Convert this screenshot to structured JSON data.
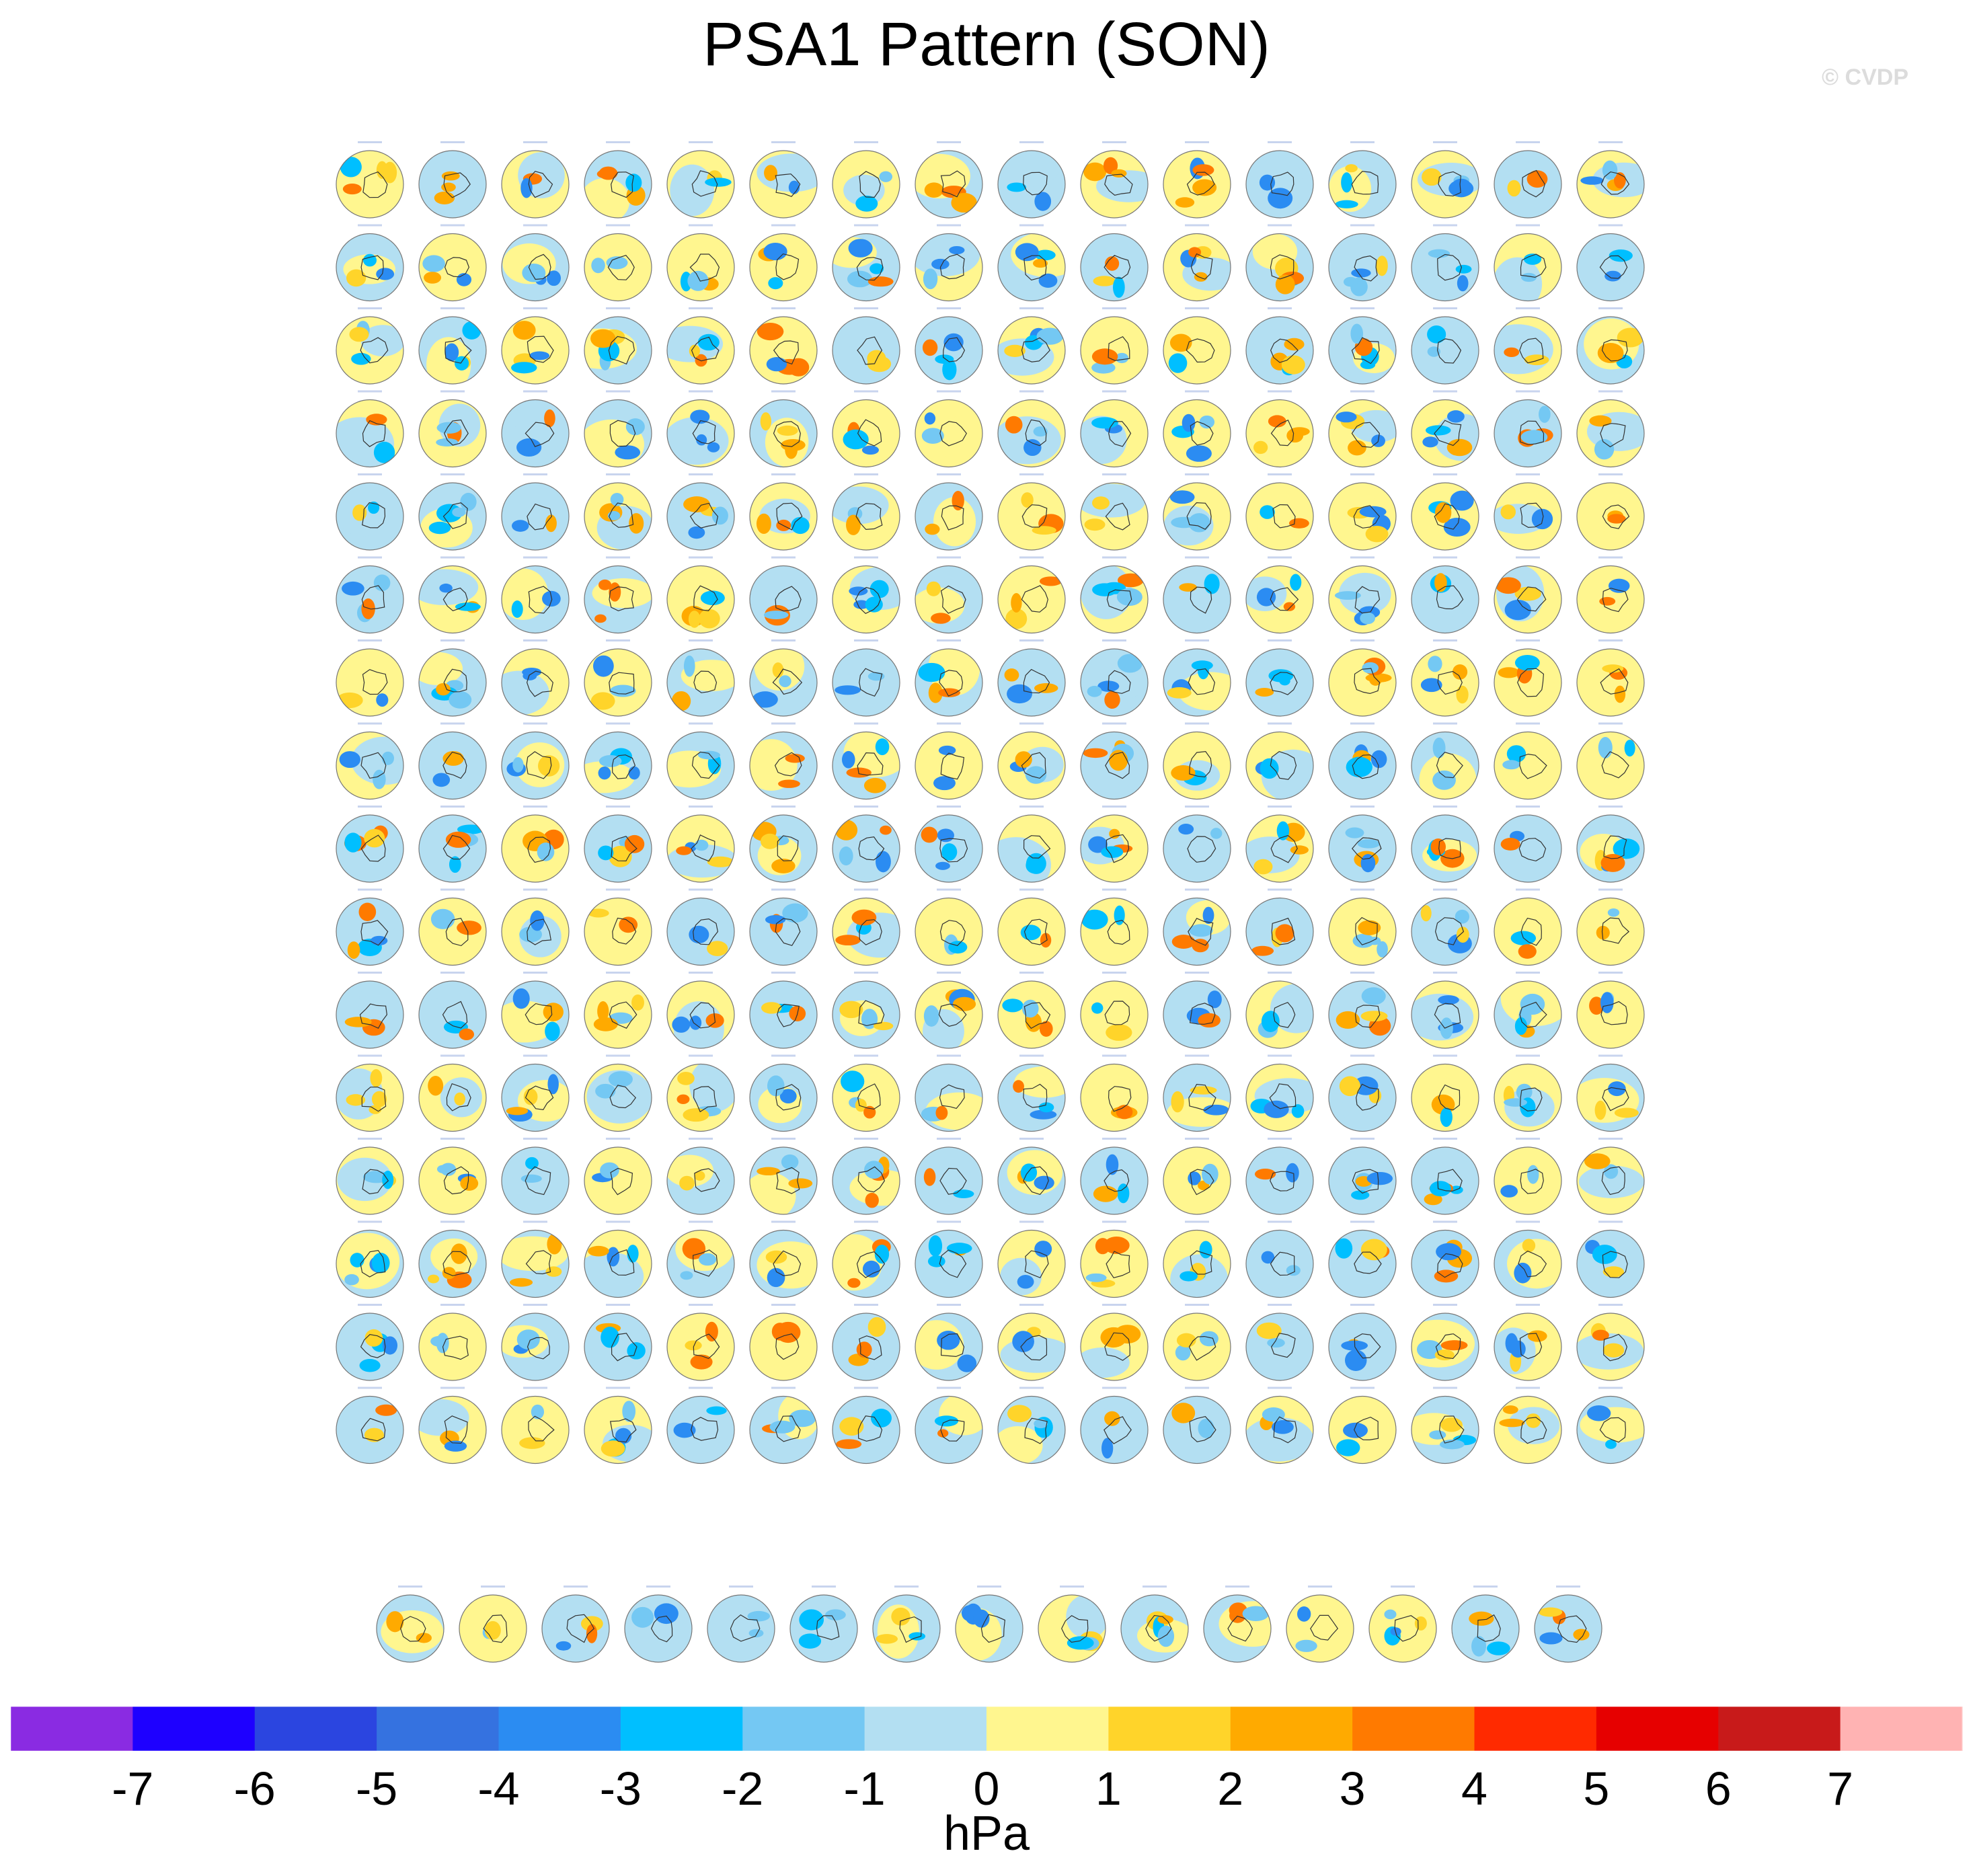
{
  "title": "PSA1 Pattern (SON)",
  "watermark": "© CVDP",
  "chart_data": {
    "type": "heatmap",
    "title": "PSA1 Pattern (SON)",
    "description_panels": "small-multiple polar-stereographic Southern Hemisphere SLP maps",
    "grid_rows": 17,
    "grid_cols": 16,
    "last_row_panels": 15,
    "colorbar": {
      "unit_label": "hPa",
      "tick_labels": [
        "-7",
        "-6",
        "-5",
        "-4",
        "-3",
        "-2",
        "-1",
        "0",
        "1",
        "2",
        "3",
        "4",
        "5",
        "6",
        "7"
      ],
      "tick_values": [
        -7,
        -6,
        -5,
        -4,
        -3,
        -2,
        -1,
        0,
        1,
        2,
        3,
        4,
        5,
        6,
        7
      ],
      "colors": [
        "#8a2be2",
        "#1e00ff",
        "#2b45e0",
        "#3572e0",
        "#2b8cf2",
        "#00bfff",
        "#74c8f3",
        "#b3dff2",
        "#fff68f",
        "#ffd42a",
        "#ffaa00",
        "#ff7a00",
        "#ff2a00",
        "#e60000",
        "#c81a1a",
        "#ffb3b3"
      ]
    }
  }
}
